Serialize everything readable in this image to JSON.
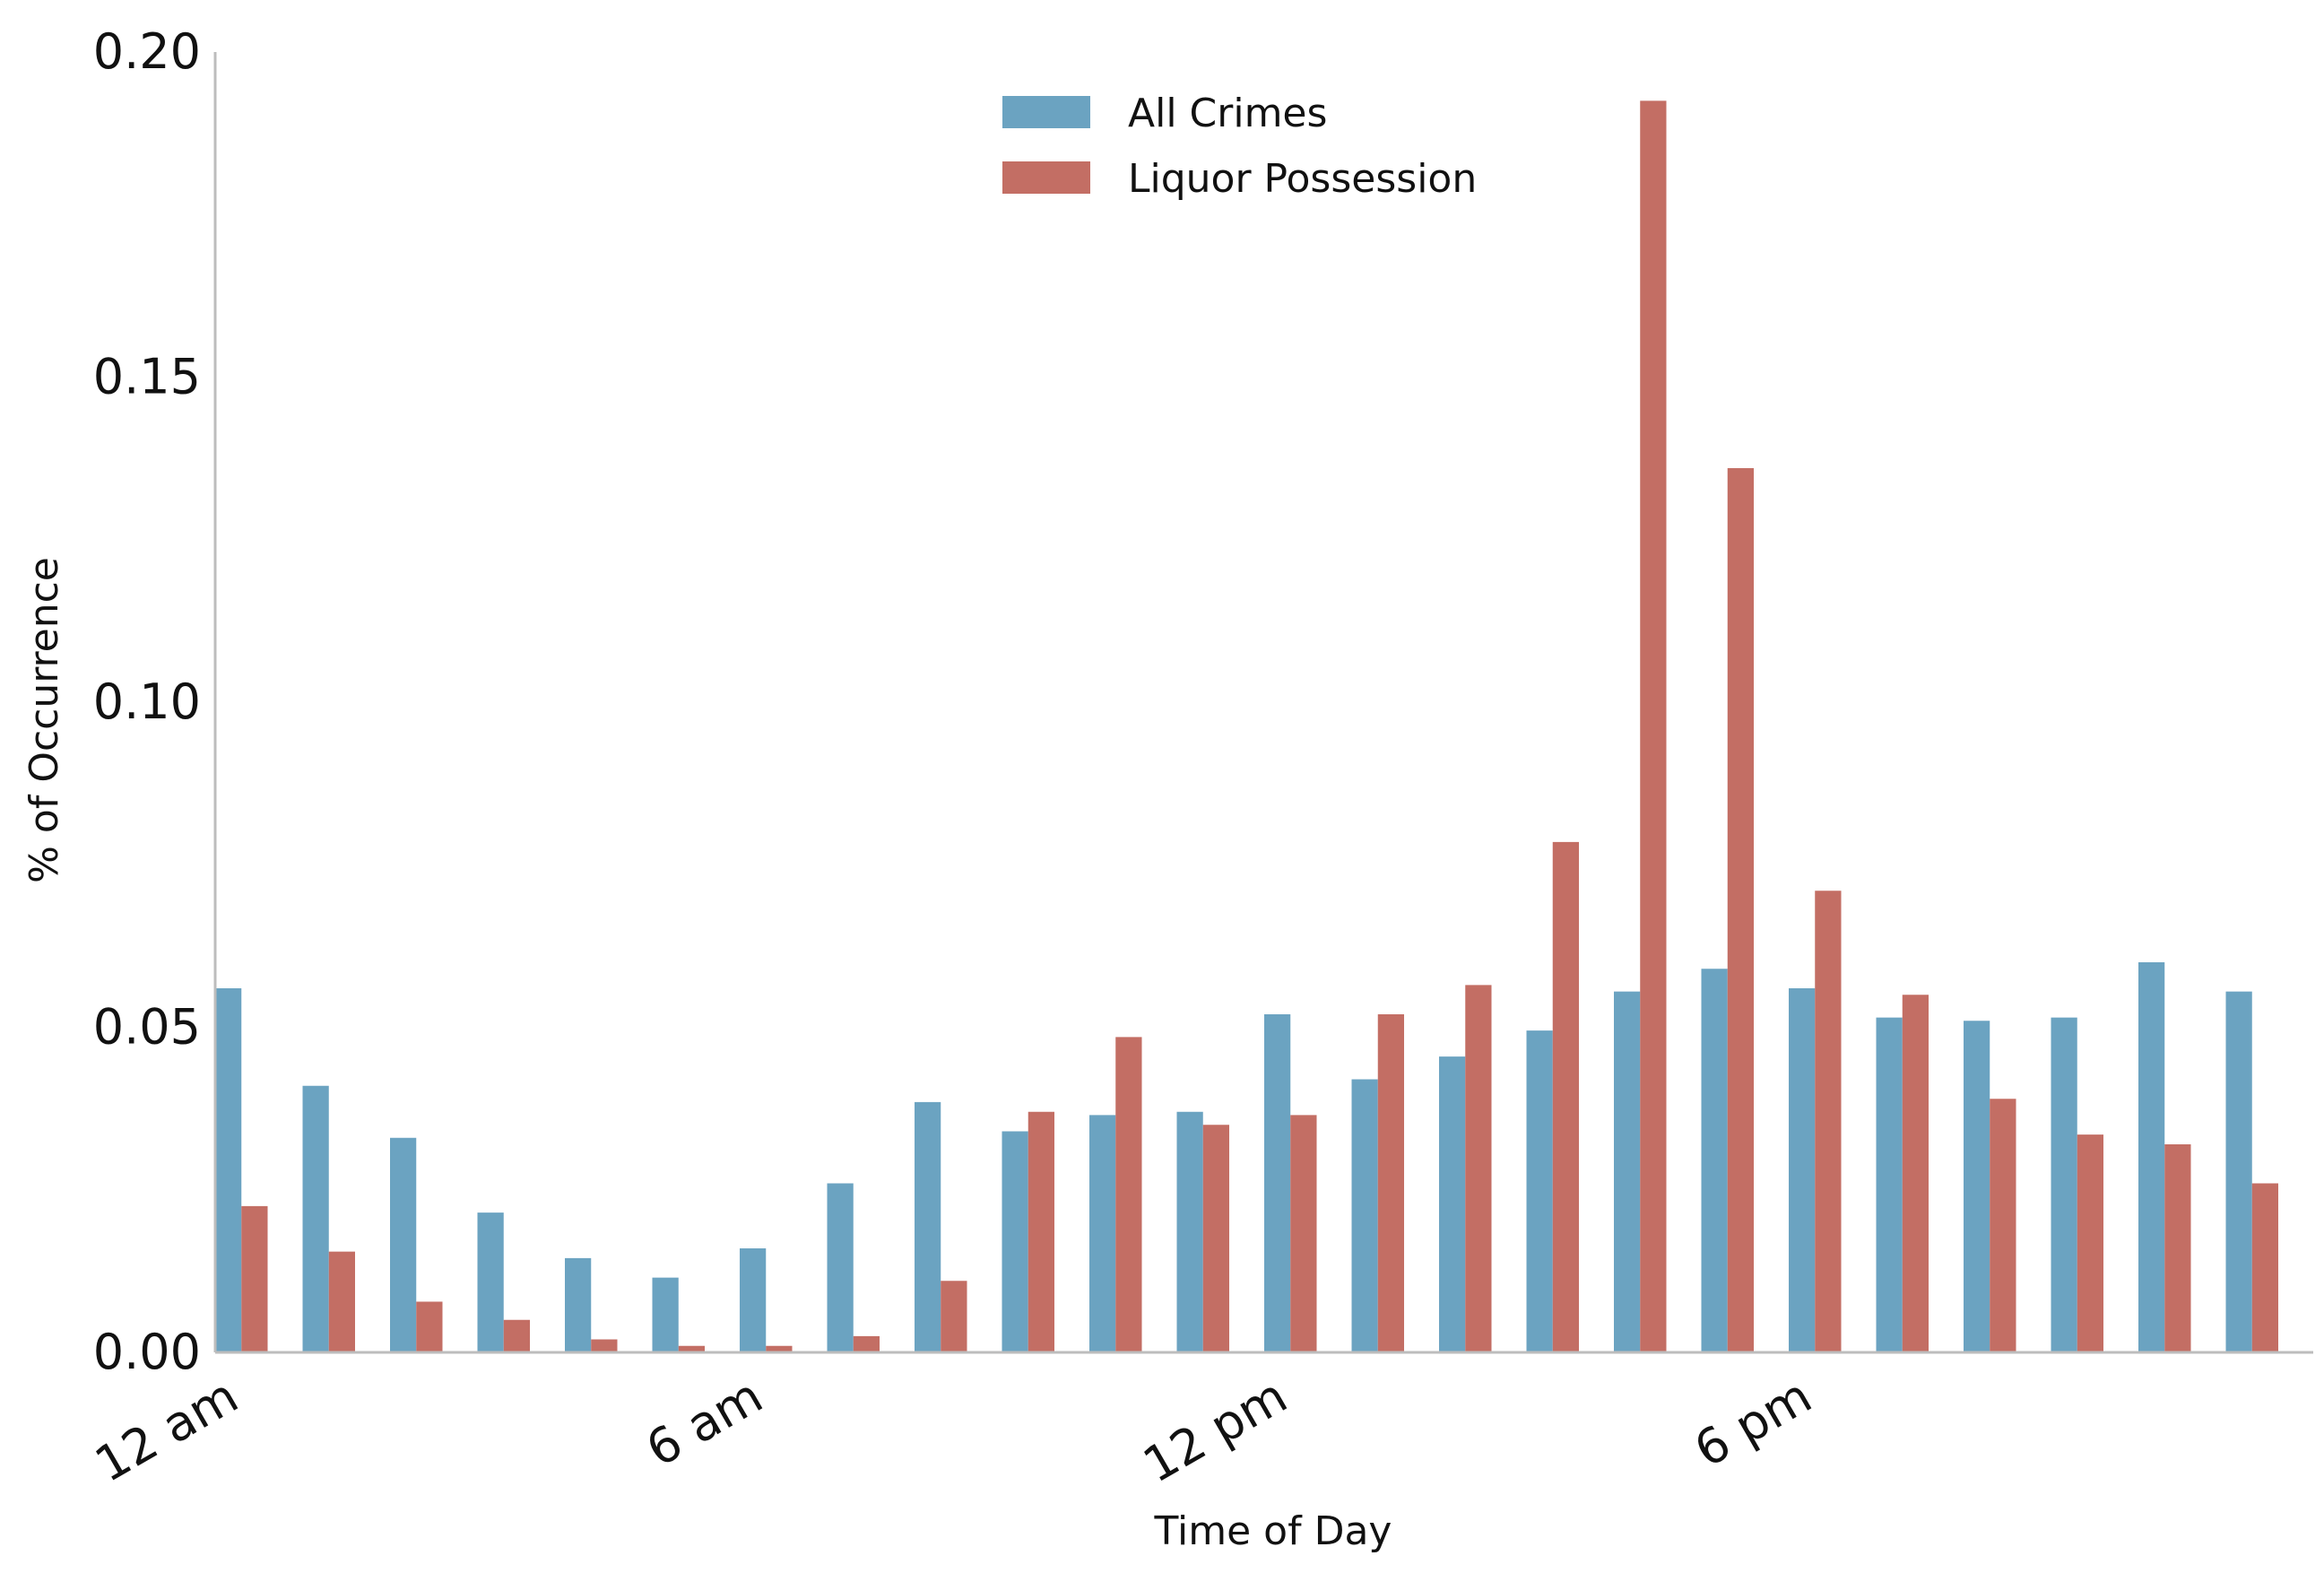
{
  "chart_data": {
    "type": "bar",
    "xlabel": "Time of Day",
    "ylabel": "% of Occurrence",
    "ylim": [
      0,
      0.2
    ],
    "yticks": [
      "0.00",
      "0.05",
      "0.10",
      "0.15",
      "0.20"
    ],
    "x": [
      0,
      1,
      2,
      3,
      4,
      5,
      6,
      7,
      8,
      9,
      10,
      11,
      12,
      13,
      14,
      15,
      16,
      17,
      18,
      19,
      20,
      21,
      22,
      23
    ],
    "xticks": [
      {
        "hour": 0,
        "label": "12 am"
      },
      {
        "hour": 6,
        "label": "6 am"
      },
      {
        "hour": 12,
        "label": "12 pm"
      },
      {
        "hour": 18,
        "label": "6 pm"
      }
    ],
    "grid": false,
    "legend_position": "top-center",
    "series": [
      {
        "name": "All Crimes",
        "color": "#6ba3c1",
        "values": [
          0.056,
          0.041,
          0.033,
          0.0215,
          0.0145,
          0.0115,
          0.016,
          0.026,
          0.0385,
          0.034,
          0.0365,
          0.037,
          0.052,
          0.042,
          0.0455,
          0.0495,
          0.0555,
          0.059,
          0.056,
          0.0515,
          0.051,
          0.0515,
          0.06,
          0.0555
        ]
      },
      {
        "name": "Liquor Possession",
        "color": "#c36e64",
        "values": [
          0.0225,
          0.0155,
          0.0078,
          0.005,
          0.002,
          0.001,
          0.001,
          0.0025,
          0.011,
          0.037,
          0.0485,
          0.035,
          0.0365,
          0.052,
          0.0565,
          0.0785,
          0.1925,
          0.136,
          0.071,
          0.055,
          0.039,
          0.0335,
          0.032,
          0.026
        ]
      }
    ]
  }
}
